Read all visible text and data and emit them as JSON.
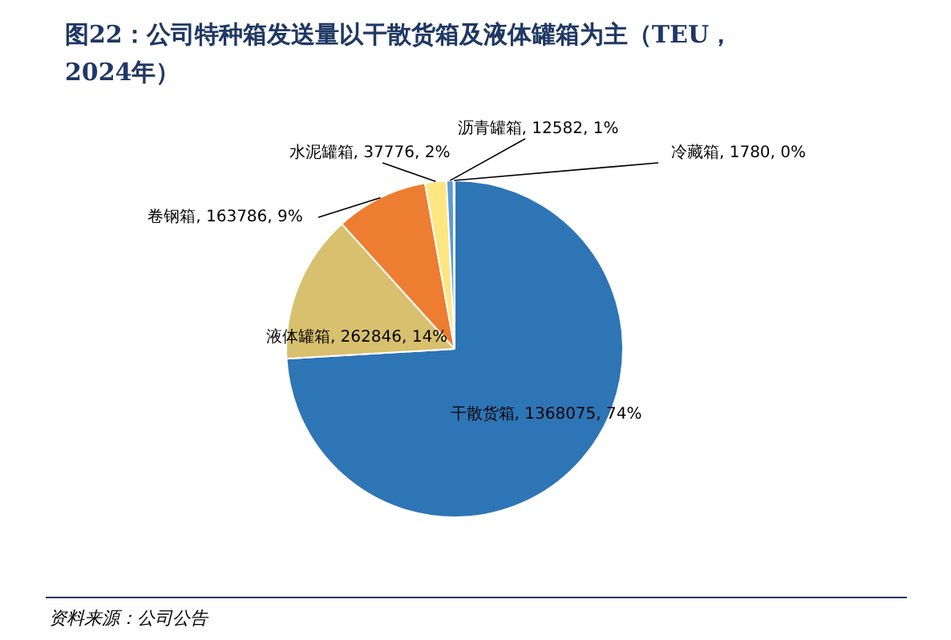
{
  "chart_data": {
    "type": "pie",
    "title": "图22：公司特种箱发送量以干散货箱及液体罐箱为主（TEU，\n2024年）",
    "categories": [
      "干散货箱",
      "液体罐箱",
      "卷钢箱",
      "水泥罐箱",
      "沥青罐箱",
      "冷藏箱"
    ],
    "values": [
      1368075,
      262846,
      163786,
      37776,
      12582,
      1780
    ],
    "colors": [
      "#2e75b6",
      "#d9c06e",
      "#ed7d31",
      "#ffe680",
      "#5b9bd5",
      "#a5a5a5"
    ],
    "value_labels": [
      "1368075, 74%",
      "262846, 14%",
      "163786, 9%",
      "37776, 2%",
      "12582, 1%",
      "1780, 0%"
    ],
    "annotations": [
      "资料来源：公司公告"
    ]
  }
}
